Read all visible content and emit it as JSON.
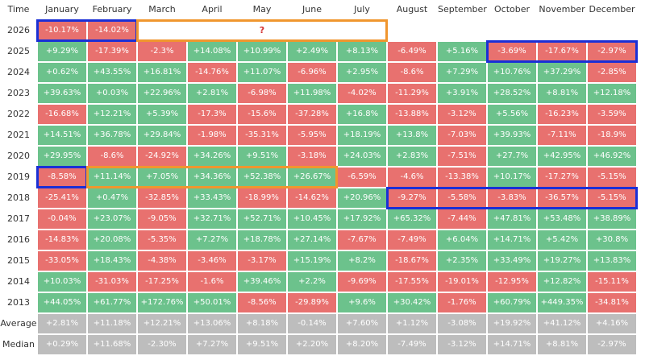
{
  "chart_data": {
    "type": "table",
    "header_label": "Time",
    "columns": [
      "January",
      "February",
      "March",
      "April",
      "May",
      "June",
      "July",
      "August",
      "September",
      "October",
      "November",
      "December"
    ],
    "rows": [
      {
        "label": "2026",
        "values": [
          "-10.17%",
          "-14.02%",
          null,
          null,
          null,
          null,
          null,
          null,
          null,
          null,
          null,
          null
        ]
      },
      {
        "label": "2025",
        "values": [
          "+9.29%",
          "-17.39%",
          "-2.3%",
          "+14.08%",
          "+10.99%",
          "+2.49%",
          "+8.13%",
          "-6.49%",
          "+5.16%",
          "-3.69%",
          "-17.67%",
          "-2.97%"
        ]
      },
      {
        "label": "2024",
        "values": [
          "+0.62%",
          "+43.55%",
          "+16.81%",
          "-14.76%",
          "+11.07%",
          "-6.96%",
          "+2.95%",
          "-8.6%",
          "+7.29%",
          "+10.76%",
          "+37.29%",
          "-2.85%"
        ]
      },
      {
        "label": "2023",
        "values": [
          "+39.63%",
          "+0.03%",
          "+22.96%",
          "+2.81%",
          "-6.98%",
          "+11.98%",
          "-4.02%",
          "-11.29%",
          "+3.91%",
          "+28.52%",
          "+8.81%",
          "+12.18%"
        ]
      },
      {
        "label": "2022",
        "values": [
          "-16.68%",
          "+12.21%",
          "+5.39%",
          "-17.3%",
          "-15.6%",
          "-37.28%",
          "+16.8%",
          "-13.88%",
          "-3.12%",
          "+5.56%",
          "-16.23%",
          "-3.59%"
        ]
      },
      {
        "label": "2021",
        "values": [
          "+14.51%",
          "+36.78%",
          "+29.84%",
          "-1.98%",
          "-35.31%",
          "-5.95%",
          "+18.19%",
          "+13.8%",
          "-7.03%",
          "+39.93%",
          "-7.11%",
          "-18.9%"
        ]
      },
      {
        "label": "2020",
        "values": [
          "+29.95%",
          "-8.6%",
          "-24.92%",
          "+34.26%",
          "+9.51%",
          "-3.18%",
          "+24.03%",
          "+2.83%",
          "-7.51%",
          "+27.7%",
          "+42.95%",
          "+46.92%"
        ]
      },
      {
        "label": "2019",
        "values": [
          "-8.58%",
          "+11.14%",
          "+7.05%",
          "+34.36%",
          "+52.38%",
          "+26.67%",
          "-6.59%",
          "-4.6%",
          "-13.38%",
          "+10.17%",
          "-17.27%",
          "-5.15%"
        ]
      },
      {
        "label": "2018",
        "values": [
          "-25.41%",
          "+0.47%",
          "-32.85%",
          "+33.43%",
          "-18.99%",
          "-14.62%",
          "+20.96%",
          "-9.27%",
          "-5.58%",
          "-3.83%",
          "-36.57%",
          "-5.15%"
        ]
      },
      {
        "label": "2017",
        "values": [
          "-0.04%",
          "+23.07%",
          "-9.05%",
          "+32.71%",
          "+52.71%",
          "+10.45%",
          "+17.92%",
          "+65.32%",
          "-7.44%",
          "+47.81%",
          "+53.48%",
          "+38.89%"
        ]
      },
      {
        "label": "2016",
        "values": [
          "-14.83%",
          "+20.08%",
          "-5.35%",
          "+7.27%",
          "+18.78%",
          "+27.14%",
          "-7.67%",
          "-7.49%",
          "+6.04%",
          "+14.71%",
          "+5.42%",
          "+30.8%"
        ]
      },
      {
        "label": "2015",
        "values": [
          "-33.05%",
          "+18.43%",
          "-4.38%",
          "-3.46%",
          "-3.17%",
          "+15.19%",
          "+8.2%",
          "-18.67%",
          "+2.35%",
          "+33.49%",
          "+19.27%",
          "+13.83%"
        ]
      },
      {
        "label": "2014",
        "values": [
          "+10.03%",
          "-31.03%",
          "-17.25%",
          "-1.6%",
          "+39.46%",
          "+2.2%",
          "-9.69%",
          "-17.55%",
          "-19.01%",
          "-12.95%",
          "+12.82%",
          "-15.11%"
        ]
      },
      {
        "label": "2013",
        "values": [
          "+44.05%",
          "+61.77%",
          "+172.76%",
          "+50.01%",
          "-8.56%",
          "-29.89%",
          "+9.6%",
          "+30.42%",
          "-1.76%",
          "+60.79%",
          "+449.35%",
          "-34.81%"
        ]
      },
      {
        "label": "Average",
        "stat": true,
        "values": [
          "+2.81%",
          "+11.18%",
          "+12.21%",
          "+13.06%",
          "+8.18%",
          "-0.14%",
          "+7.60%",
          "+1.12%",
          "-3.08%",
          "+19.92%",
          "+41.12%",
          "+4.16%"
        ]
      },
      {
        "label": "Median",
        "stat": true,
        "values": [
          "+0.29%",
          "+11.68%",
          "-2.30%",
          "+7.27%",
          "+9.51%",
          "+2.20%",
          "+8.20%",
          "-7.49%",
          "-3.12%",
          "+14.71%",
          "+8.81%",
          "-2.97%"
        ]
      }
    ],
    "colors": {
      "positive": "#6cc28c",
      "negative": "#e8716f",
      "stat": "#bdbdbd",
      "highlight_blue": "#1a2fd6",
      "highlight_orange": "#f0962e",
      "question": "#d32f2f"
    },
    "highlights": [
      {
        "color": "blue",
        "row": 0,
        "from_col": 0,
        "to_col": 1
      },
      {
        "color": "orange",
        "row": 0,
        "from_col": 2,
        "to_col": 6,
        "text": "?"
      },
      {
        "color": "blue",
        "row": 1,
        "from_col": 9,
        "to_col": 11
      },
      {
        "color": "blue",
        "row": 7,
        "from_col": 0,
        "to_col": 0
      },
      {
        "color": "orange",
        "row": 7,
        "from_col": 1,
        "to_col": 5
      },
      {
        "color": "blue",
        "row": 8,
        "from_col": 7,
        "to_col": 11
      }
    ]
  }
}
